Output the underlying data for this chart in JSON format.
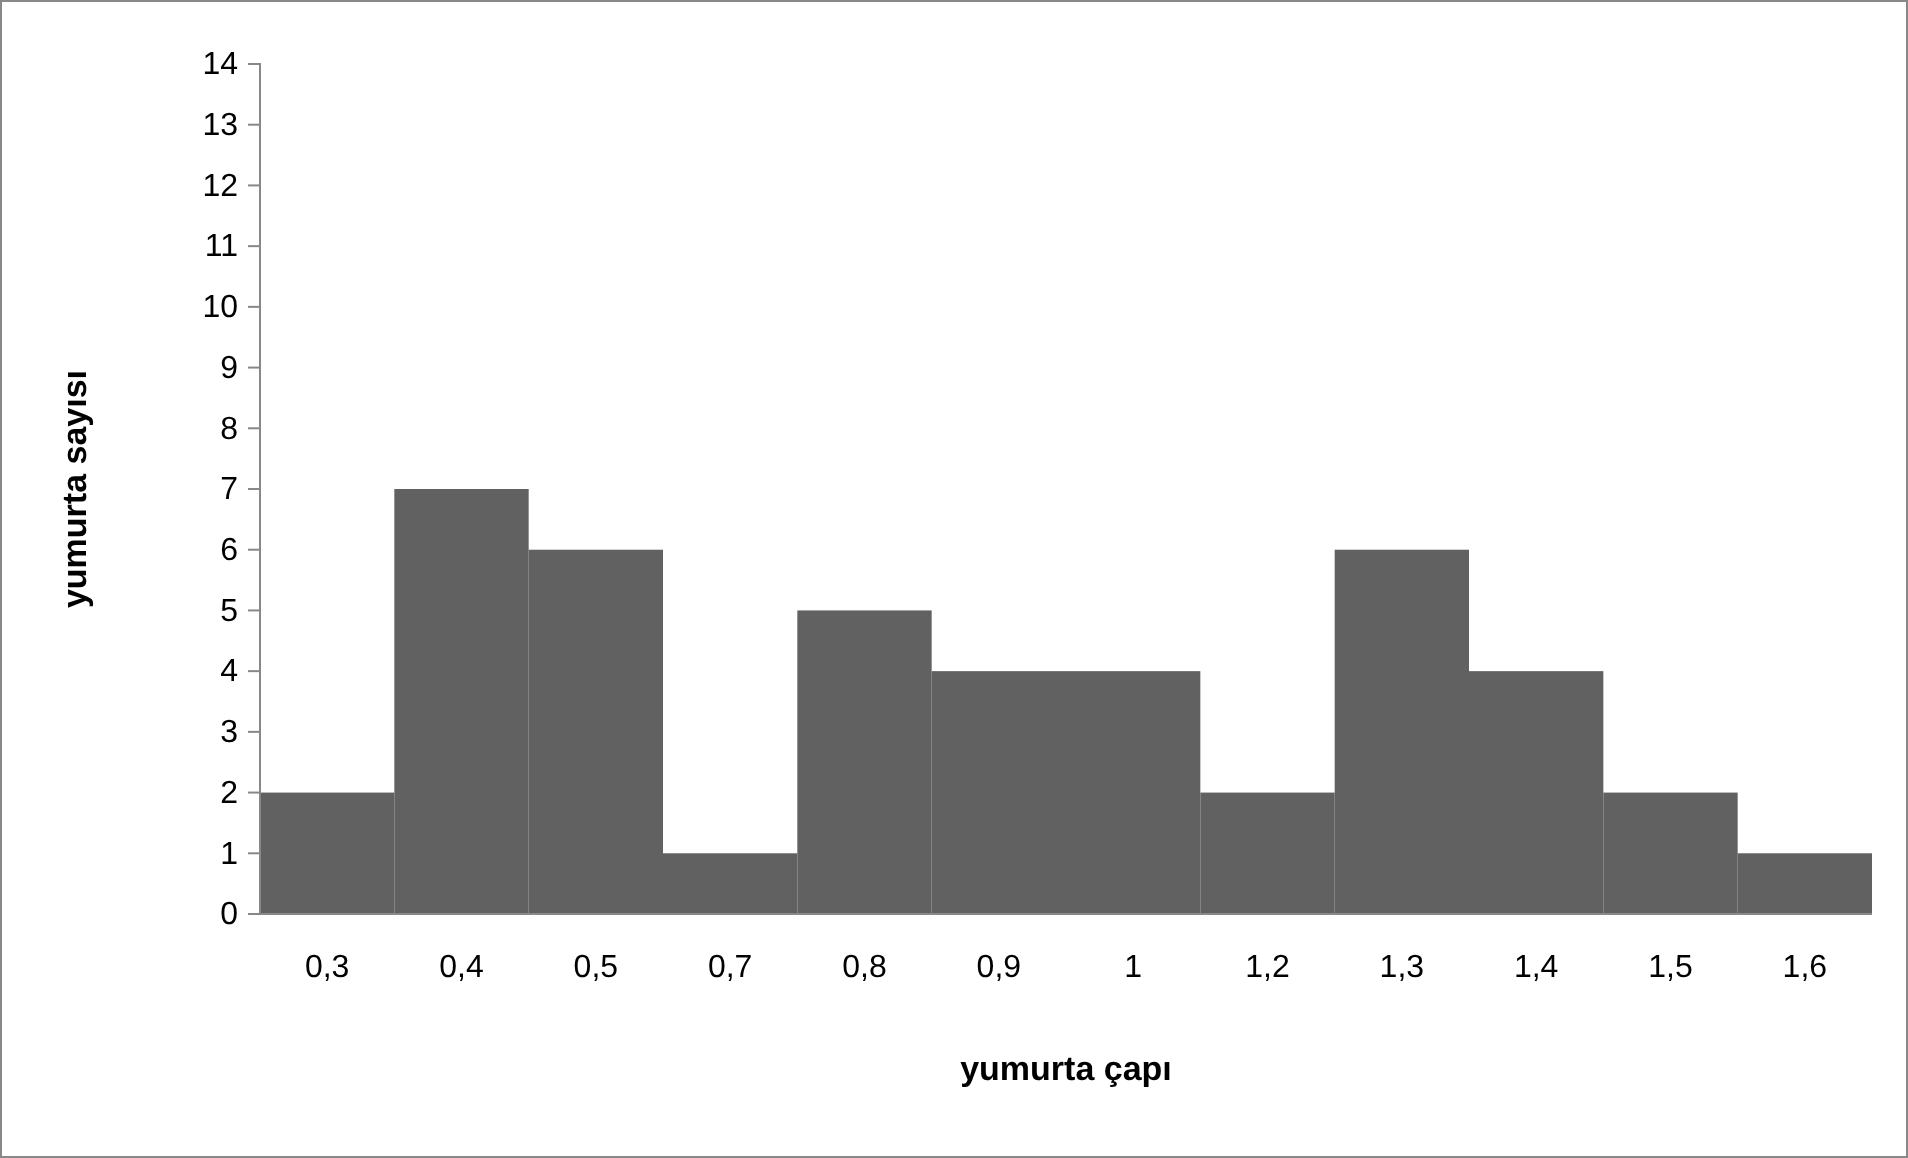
{
  "chart_data": {
    "type": "bar",
    "xlabel": "yumurta çapı",
    "ylabel": "yumurta sayısı",
    "categories": [
      "0,3",
      "0,4",
      "0,5",
      "0,7",
      "0,8",
      "0,9",
      "1",
      "1,2",
      "1,3",
      "1,4",
      "1,5",
      "1,6"
    ],
    "values": [
      2,
      7,
      6,
      1,
      5,
      4,
      4,
      2,
      6,
      4,
      2,
      1
    ],
    "color": "#616161",
    "ylim": [
      0,
      14
    ],
    "yticks": [
      0,
      1,
      2,
      3,
      4,
      5,
      6,
      7,
      8,
      9,
      10,
      11,
      12,
      13,
      14
    ]
  }
}
